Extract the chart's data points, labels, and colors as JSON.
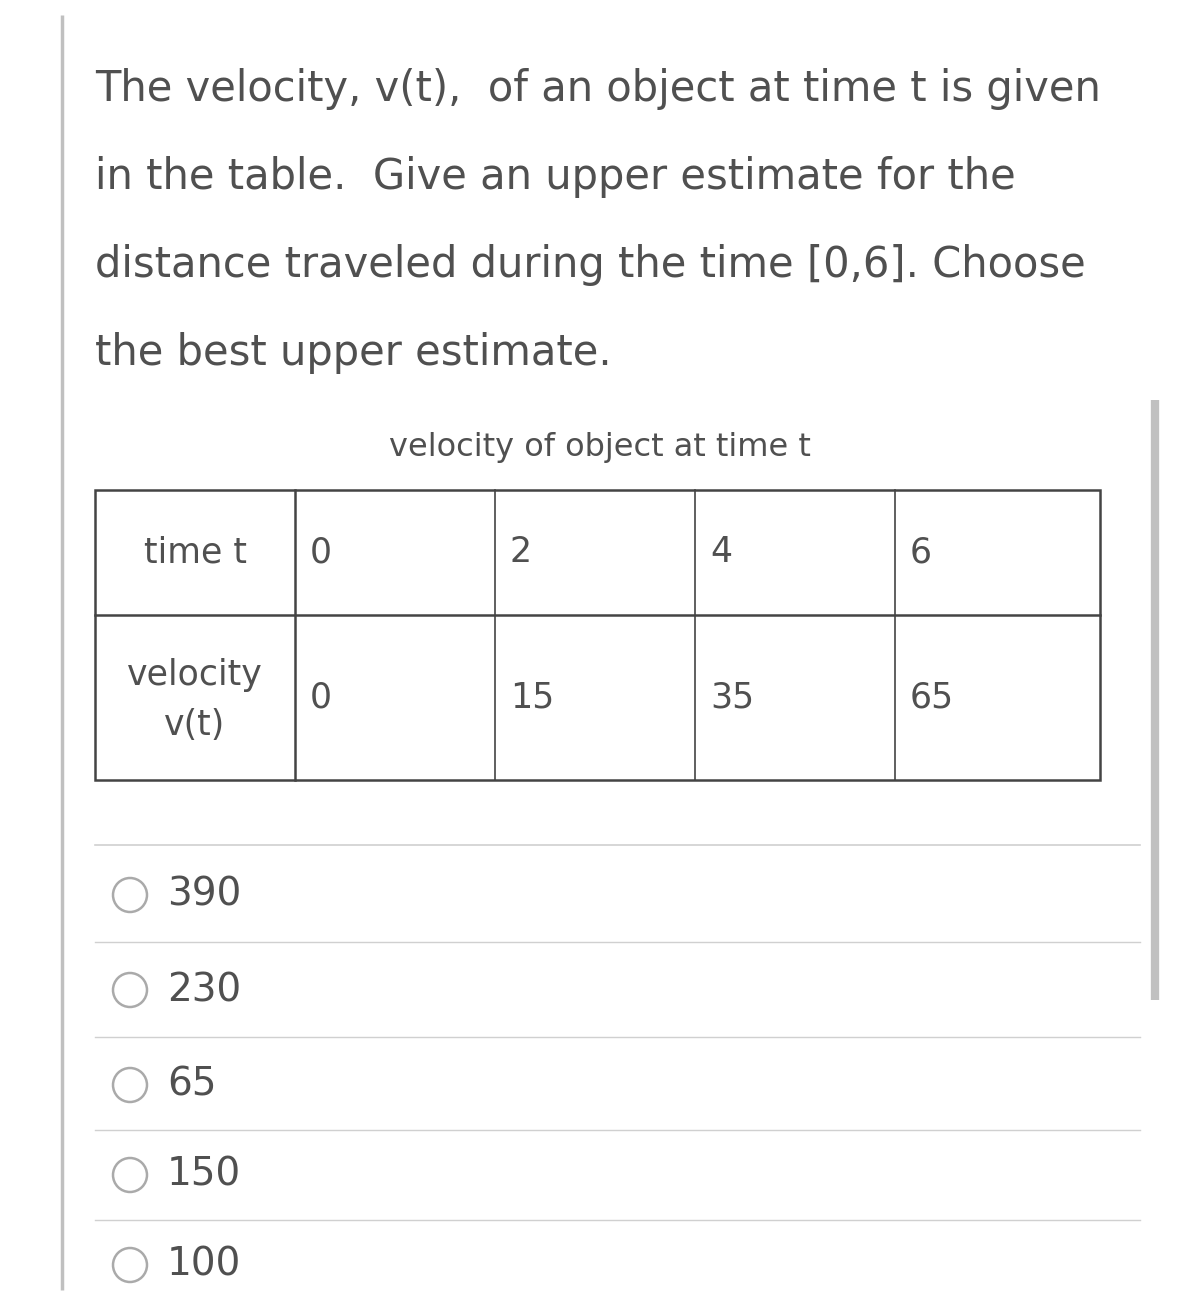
{
  "question_lines": [
    "The velocity, v(t),  of an object at time t is given",
    "in the table.  Give an upper estimate for the",
    "distance traveled during the time [0,6]. Choose",
    "the best upper estimate."
  ],
  "table_title": "velocity of object at time t",
  "time_row_label": "time t",
  "time_values": [
    "0",
    "2",
    "4",
    "6"
  ],
  "vel_row_label1": "velocity",
  "vel_row_label2": "v(t)",
  "vel_values": [
    "0",
    "15",
    "35",
    "65"
  ],
  "choices": [
    "390",
    "230",
    "65",
    "150",
    "100"
  ],
  "bg_color": "#ffffff",
  "text_color": "#505050",
  "table_border_color": "#444444",
  "choice_circle_color": "#aaaaaa",
  "separator_color": "#d0d0d0",
  "left_border_color": "#c0c0c0",
  "right_border_color": "#c0c0c0",
  "font_size_question": 30,
  "font_size_table_title": 23,
  "font_size_table": 25,
  "font_size_choices": 28,
  "fig_width": 12.0,
  "fig_height": 13.07
}
